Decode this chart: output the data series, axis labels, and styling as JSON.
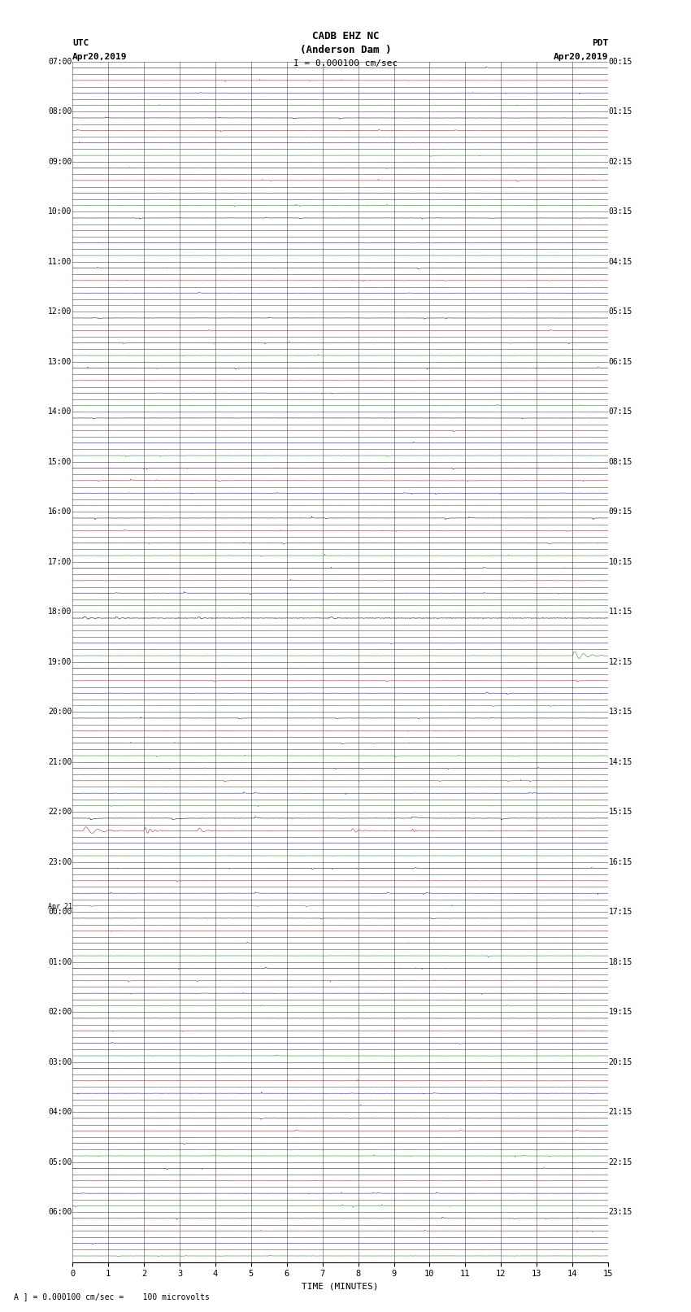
{
  "title_line1": "CADB EHZ NC",
  "title_line2": "(Anderson Dam )",
  "title_scale": "I = 0.000100 cm/sec",
  "left_header_line1": "UTC",
  "left_header_line2": "Apr20,2019",
  "right_header_line1": "PDT",
  "right_header_line2": "Apr20,2019",
  "xlabel": "TIME (MINUTES)",
  "footnote": "A ] = 0.000100 cm/sec =    100 microvolts",
  "bg_color": "#ffffff",
  "fig_width": 8.5,
  "fig_height": 16.13,
  "num_rows": 96,
  "minutes_per_trace": 15,
  "x_ticks": [
    0,
    1,
    2,
    3,
    4,
    5,
    6,
    7,
    8,
    9,
    10,
    11,
    12,
    13,
    14,
    15
  ],
  "left_labels": [
    [
      "07:00",
      0
    ],
    [
      "",
      1
    ],
    [
      "",
      2
    ],
    [
      "",
      3
    ],
    [
      "08:00",
      4
    ],
    [
      "",
      5
    ],
    [
      "",
      6
    ],
    [
      "",
      7
    ],
    [
      "09:00",
      8
    ],
    [
      "",
      9
    ],
    [
      "",
      10
    ],
    [
      "",
      11
    ],
    [
      "10:00",
      12
    ],
    [
      "",
      13
    ],
    [
      "",
      14
    ],
    [
      "",
      15
    ],
    [
      "11:00",
      16
    ],
    [
      "",
      17
    ],
    [
      "",
      18
    ],
    [
      "",
      19
    ],
    [
      "12:00",
      20
    ],
    [
      "",
      21
    ],
    [
      "",
      22
    ],
    [
      "",
      23
    ],
    [
      "13:00",
      24
    ],
    [
      "",
      25
    ],
    [
      "",
      26
    ],
    [
      "",
      27
    ],
    [
      "14:00",
      28
    ],
    [
      "",
      29
    ],
    [
      "",
      30
    ],
    [
      "",
      31
    ],
    [
      "15:00",
      32
    ],
    [
      "",
      33
    ],
    [
      "",
      34
    ],
    [
      "",
      35
    ],
    [
      "16:00",
      36
    ],
    [
      "",
      37
    ],
    [
      "",
      38
    ],
    [
      "",
      39
    ],
    [
      "17:00",
      40
    ],
    [
      "",
      41
    ],
    [
      "",
      42
    ],
    [
      "",
      43
    ],
    [
      "18:00",
      44
    ],
    [
      "",
      45
    ],
    [
      "",
      46
    ],
    [
      "",
      47
    ],
    [
      "19:00",
      48
    ],
    [
      "",
      49
    ],
    [
      "",
      50
    ],
    [
      "",
      51
    ],
    [
      "20:00",
      52
    ],
    [
      "",
      53
    ],
    [
      "",
      54
    ],
    [
      "",
      55
    ],
    [
      "21:00",
      56
    ],
    [
      "",
      57
    ],
    [
      "",
      58
    ],
    [
      "",
      59
    ],
    [
      "22:00",
      60
    ],
    [
      "",
      61
    ],
    [
      "",
      62
    ],
    [
      "",
      63
    ],
    [
      "23:00",
      64
    ],
    [
      "",
      65
    ],
    [
      "",
      66
    ],
    [
      "",
      67
    ],
    [
      "Apr 21",
      68
    ],
    [
      "00:00",
      68
    ],
    [
      "",
      69
    ],
    [
      "",
      70
    ],
    [
      "",
      71
    ],
    [
      "01:00",
      72
    ],
    [
      "",
      73
    ],
    [
      "",
      74
    ],
    [
      "",
      75
    ],
    [
      "02:00",
      76
    ],
    [
      "",
      77
    ],
    [
      "",
      78
    ],
    [
      "",
      79
    ],
    [
      "03:00",
      80
    ],
    [
      "",
      81
    ],
    [
      "",
      82
    ],
    [
      "",
      83
    ],
    [
      "04:00",
      84
    ],
    [
      "",
      85
    ],
    [
      "",
      86
    ],
    [
      "",
      87
    ],
    [
      "05:00",
      88
    ],
    [
      "",
      89
    ],
    [
      "",
      90
    ],
    [
      "",
      91
    ],
    [
      "06:00",
      92
    ],
    [
      "",
      93
    ],
    [
      "",
      94
    ],
    [
      "",
      95
    ]
  ],
  "right_labels": [
    [
      "00:15",
      0
    ],
    [
      "",
      1
    ],
    [
      "",
      2
    ],
    [
      "",
      3
    ],
    [
      "01:15",
      4
    ],
    [
      "",
      5
    ],
    [
      "",
      6
    ],
    [
      "",
      7
    ],
    [
      "02:15",
      8
    ],
    [
      "",
      9
    ],
    [
      "",
      10
    ],
    [
      "",
      11
    ],
    [
      "03:15",
      12
    ],
    [
      "",
      13
    ],
    [
      "",
      14
    ],
    [
      "",
      15
    ],
    [
      "04:15",
      16
    ],
    [
      "",
      17
    ],
    [
      "",
      18
    ],
    [
      "",
      19
    ],
    [
      "05:15",
      20
    ],
    [
      "",
      21
    ],
    [
      "",
      22
    ],
    [
      "",
      23
    ],
    [
      "06:15",
      24
    ],
    [
      "",
      25
    ],
    [
      "",
      26
    ],
    [
      "",
      27
    ],
    [
      "07:15",
      28
    ],
    [
      "",
      29
    ],
    [
      "",
      30
    ],
    [
      "",
      31
    ],
    [
      "08:15",
      32
    ],
    [
      "",
      33
    ],
    [
      "",
      34
    ],
    [
      "",
      35
    ],
    [
      "09:15",
      36
    ],
    [
      "",
      37
    ],
    [
      "",
      38
    ],
    [
      "",
      39
    ],
    [
      "10:15",
      40
    ],
    [
      "",
      41
    ],
    [
      "",
      42
    ],
    [
      "",
      43
    ],
    [
      "11:15",
      44
    ],
    [
      "",
      45
    ],
    [
      "",
      46
    ],
    [
      "",
      47
    ],
    [
      "12:15",
      48
    ],
    [
      "",
      49
    ],
    [
      "",
      50
    ],
    [
      "",
      51
    ],
    [
      "13:15",
      52
    ],
    [
      "",
      53
    ],
    [
      "",
      54
    ],
    [
      "",
      55
    ],
    [
      "14:15",
      56
    ],
    [
      "",
      57
    ],
    [
      "",
      58
    ],
    [
      "",
      59
    ],
    [
      "15:15",
      60
    ],
    [
      "",
      61
    ],
    [
      "",
      62
    ],
    [
      "",
      63
    ],
    [
      "16:15",
      64
    ],
    [
      "",
      65
    ],
    [
      "",
      66
    ],
    [
      "",
      67
    ],
    [
      "17:15",
      68
    ],
    [
      "",
      69
    ],
    [
      "",
      70
    ],
    [
      "",
      71
    ],
    [
      "18:15",
      72
    ],
    [
      "",
      73
    ],
    [
      "",
      74
    ],
    [
      "",
      75
    ],
    [
      "19:15",
      76
    ],
    [
      "",
      77
    ],
    [
      "",
      78
    ],
    [
      "",
      79
    ],
    [
      "20:15",
      80
    ],
    [
      "",
      81
    ],
    [
      "",
      82
    ],
    [
      "",
      83
    ],
    [
      "21:15",
      84
    ],
    [
      "",
      85
    ],
    [
      "",
      86
    ],
    [
      "",
      87
    ],
    [
      "22:15",
      88
    ],
    [
      "",
      89
    ],
    [
      "",
      90
    ],
    [
      "",
      91
    ],
    [
      "23:15",
      92
    ],
    [
      "",
      93
    ],
    [
      "",
      94
    ],
    [
      "",
      95
    ]
  ],
  "row_colors": [
    "#000000",
    "#cc0000",
    "#0000cc",
    "#008800",
    "#000000",
    "#cc0000",
    "#0000cc",
    "#008800",
    "#000000",
    "#cc0000",
    "#0000cc",
    "#008800",
    "#000000",
    "#cc0000",
    "#0000cc",
    "#008800",
    "#000000",
    "#cc0000",
    "#0000cc",
    "#008800",
    "#000000",
    "#cc0000",
    "#0000cc",
    "#008800",
    "#000000",
    "#cc0000",
    "#0000cc",
    "#008800",
    "#000000",
    "#cc0000",
    "#0000cc",
    "#008800",
    "#000000",
    "#cc0000",
    "#0000cc",
    "#008800",
    "#000000",
    "#cc0000",
    "#0000cc",
    "#008800",
    "#000000",
    "#cc0000",
    "#0000cc",
    "#008800",
    "#000000",
    "#cc0000",
    "#0000cc",
    "#008800",
    "#000000",
    "#cc0000",
    "#0000cc",
    "#008800",
    "#000000",
    "#cc0000",
    "#0000cc",
    "#008800",
    "#000000",
    "#cc0000",
    "#0000cc",
    "#008800",
    "#000000",
    "#cc0000",
    "#0000cc",
    "#008800",
    "#000000",
    "#cc0000",
    "#0000cc",
    "#008800",
    "#000000",
    "#cc0000",
    "#0000cc",
    "#008800",
    "#000000",
    "#cc0000",
    "#0000cc",
    "#008800",
    "#000000",
    "#cc0000",
    "#0000cc",
    "#008800",
    "#000000",
    "#cc0000",
    "#0000cc",
    "#008800",
    "#000000",
    "#cc0000",
    "#0000cc",
    "#008800",
    "#000000",
    "#cc0000",
    "#0000cc",
    "#008800",
    "#000000",
    "#cc0000",
    "#0000cc",
    "#008800"
  ]
}
